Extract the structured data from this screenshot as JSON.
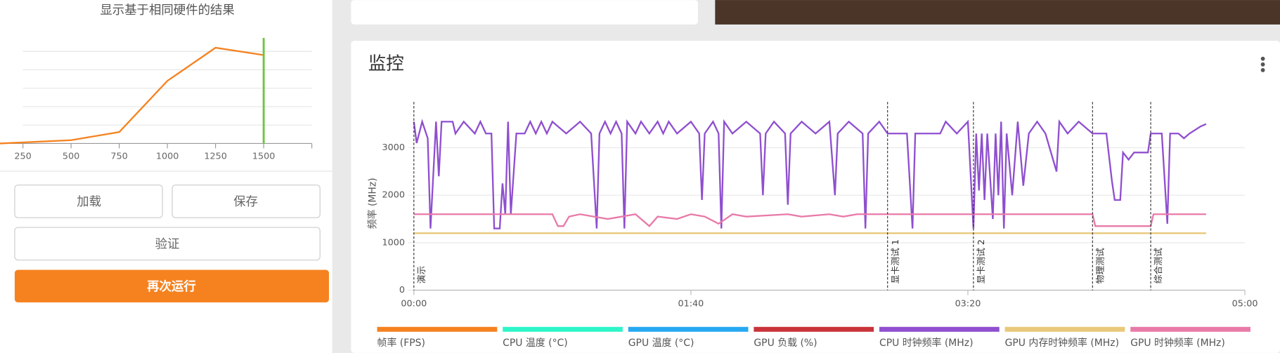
{
  "sidebar": {
    "caption": "显示基于相同硬件的结果",
    "buttons": [
      "加载",
      "保存",
      "验证"
    ],
    "primary_button": "再次运行"
  },
  "monitor": {
    "title": "监控"
  },
  "chart_data": [
    {
      "type": "line",
      "xlim": [
        131,
        1750
      ],
      "xticks": [
        250,
        500,
        750,
        1000,
        1250,
        1500
      ],
      "ylim": [
        0,
        6
      ],
      "ygrid": [
        1,
        2,
        3,
        4,
        5
      ],
      "series": [
        {
          "color": "#f5821f",
          "x": [
            131,
            500,
            750,
            1000,
            1250,
            1500
          ],
          "values": [
            0,
            0.18,
            0.62,
            3.4,
            5.2,
            4.8
          ]
        }
      ],
      "marker_x": 1500,
      "marker_color": "#6cc644"
    },
    {
      "type": "line",
      "ylabel": "频率 (MHz)",
      "xlim": [
        0,
        300
      ],
      "ylim": [
        0,
        4000
      ],
      "yticks": [
        0,
        1000,
        2000,
        3000
      ],
      "grid": true,
      "xticks": [
        {
          "value": 0,
          "label": "00:00"
        },
        {
          "value": 100,
          "label": "01:40"
        },
        {
          "value": 200,
          "label": "03:20"
        },
        {
          "value": 300,
          "label": "05:00"
        }
      ],
      "events": [
        {
          "x": 0,
          "label": "演示"
        },
        {
          "x": 171,
          "label": "显卡测试 1"
        },
        {
          "x": 202,
          "label": "显卡测试 2"
        },
        {
          "x": 245,
          "label": "物理测试"
        },
        {
          "x": 266,
          "label": "综合测试"
        }
      ],
      "series": [
        {
          "name": "帧率 (FPS)",
          "color": "#f5821f"
        },
        {
          "name": "CPU 温度 (°C)",
          "color": "#2ef5c8"
        },
        {
          "name": "GPU 温度 (°C)",
          "color": "#27a9f2"
        },
        {
          "name": "GPU 负载 (%)",
          "color": "#c9333a"
        },
        {
          "name": "CPU 时钟频率 (MHz)",
          "color": "#8f4fcf",
          "x": [
            0,
            1,
            3,
            5,
            6,
            8,
            9,
            10,
            14,
            15,
            18,
            22,
            24,
            26,
            28,
            29,
            31,
            32,
            33,
            34,
            35,
            37,
            40,
            42,
            44,
            46,
            48,
            50,
            55,
            60,
            64,
            66,
            67,
            69,
            71,
            73,
            75,
            76,
            77,
            80,
            82,
            85,
            88,
            90,
            92,
            95,
            100,
            103,
            104,
            105,
            108,
            110,
            111,
            112,
            115,
            120,
            125,
            126,
            127,
            130,
            134,
            135,
            136,
            140,
            145,
            150,
            152,
            153,
            157,
            162,
            163,
            164,
            168,
            171,
            178,
            180,
            181,
            190,
            192,
            196,
            200,
            202,
            203,
            204,
            205,
            206,
            207,
            209,
            210,
            211,
            212,
            213,
            214,
            216,
            218,
            220,
            222,
            225,
            228,
            232,
            233,
            236,
            240,
            245,
            250,
            252,
            253,
            255,
            256,
            258,
            260,
            265,
            266,
            270,
            272,
            273,
            276,
            278,
            280,
            284,
            286
          ],
          "values": [
            3550,
            3100,
            3550,
            3200,
            1300,
            3550,
            2400,
            3550,
            3550,
            3300,
            3550,
            3300,
            3550,
            3300,
            3300,
            1300,
            1300,
            2250,
            1600,
            3550,
            1600,
            3300,
            3300,
            3550,
            3300,
            3550,
            3300,
            3550,
            3300,
            3550,
            3300,
            1300,
            3300,
            3550,
            3300,
            3550,
            3300,
            1300,
            3550,
            3300,
            3550,
            3300,
            3550,
            3300,
            3550,
            3300,
            3550,
            3300,
            1900,
            3300,
            3550,
            3300,
            1300,
            3550,
            3300,
            3550,
            3300,
            2000,
            3300,
            3550,
            3300,
            1800,
            3300,
            3550,
            3300,
            3550,
            2000,
            3300,
            3550,
            3300,
            1300,
            3300,
            3550,
            3300,
            3300,
            1300,
            3300,
            3300,
            3550,
            3300,
            3550,
            1300,
            3300,
            2100,
            3300,
            1900,
            3300,
            1500,
            3300,
            2000,
            3550,
            1300,
            3300,
            2000,
            3550,
            2200,
            3300,
            3550,
            3300,
            2500,
            3550,
            3300,
            3550,
            3300,
            3300,
            2300,
            1900,
            1900,
            2900,
            2750,
            2900,
            2900,
            3300,
            3300,
            1400,
            3300,
            3300,
            3200,
            3300,
            3450,
            3500
          ]
        },
        {
          "name": "GPU 内存时钟频率 (MHz)",
          "color": "#e8c97a",
          "x": [
            0,
            286
          ],
          "values": [
            1200,
            1200
          ]
        },
        {
          "name": "GPU 时钟频率 (MHz)",
          "color": "#e87aa8",
          "x": [
            0,
            50,
            52,
            54,
            56,
            60,
            70,
            80,
            85,
            88,
            95,
            100,
            105,
            110,
            115,
            120,
            135,
            140,
            150,
            155,
            160,
            245,
            246,
            266,
            267,
            286
          ],
          "values": [
            1600,
            1600,
            1350,
            1350,
            1550,
            1600,
            1500,
            1600,
            1350,
            1550,
            1500,
            1600,
            1550,
            1400,
            1600,
            1550,
            1600,
            1550,
            1600,
            1550,
            1600,
            1600,
            1350,
            1350,
            1600,
            1600
          ]
        }
      ]
    }
  ]
}
